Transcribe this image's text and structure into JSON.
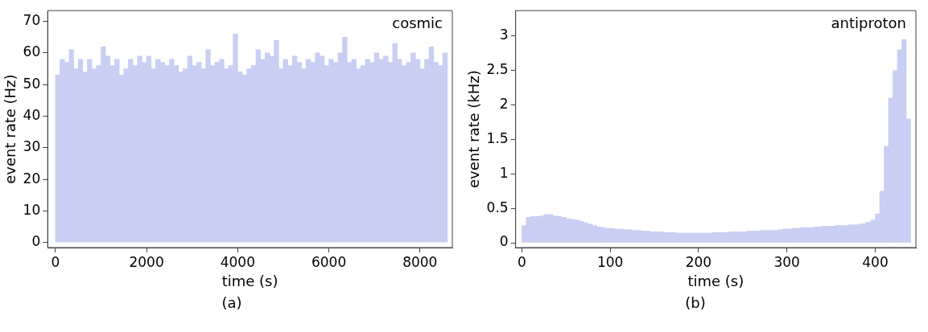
{
  "chart_data": [
    {
      "type": "histogram",
      "xlabel": "time (s)",
      "ylabel": "event rate (Hz)",
      "color": "#c8cff3",
      "grid": false,
      "legend": false,
      "annotations": [
        "cosmic",
        "(a)"
      ],
      "xlim": [
        -170,
        8710
      ],
      "xticks": [
        0,
        2000,
        4000,
        6000,
        8000
      ],
      "ylim": [
        -1.6,
        73.4
      ],
      "yticks": [
        0,
        10,
        20,
        30,
        40,
        50,
        60,
        70
      ],
      "bins": [
        0,
        100,
        200,
        300,
        400,
        500,
        600,
        700,
        800,
        900,
        1000,
        1100,
        1200,
        1300,
        1400,
        1500,
        1600,
        1700,
        1800,
        1900,
        2000,
        2100,
        2200,
        2300,
        2400,
        2500,
        2600,
        2700,
        2800,
        2900,
        3000,
        3100,
        3200,
        3300,
        3400,
        3500,
        3600,
        3700,
        3800,
        3900,
        4000,
        4100,
        4200,
        4300,
        4400,
        4500,
        4600,
        4700,
        4800,
        4900,
        5000,
        5100,
        5200,
        5300,
        5400,
        5500,
        5600,
        5700,
        5800,
        5900,
        6000,
        6100,
        6200,
        6300,
        6400,
        6500,
        6600,
        6700,
        6800,
        6900,
        7000,
        7100,
        7200,
        7300,
        7400,
        7500,
        7600,
        7700,
        7800,
        7900,
        8000,
        8100,
        8200,
        8300,
        8400,
        8500,
        8600
      ],
      "values": [
        53,
        58,
        57,
        61,
        55,
        58,
        54,
        58,
        55,
        56,
        62,
        59,
        56,
        58,
        53,
        55,
        58,
        56,
        59,
        57,
        59,
        55,
        58,
        57,
        56,
        58,
        56,
        54,
        55,
        59,
        56,
        57,
        55,
        61,
        56,
        57,
        58,
        55,
        56,
        66,
        54,
        53,
        55,
        56,
        61,
        58,
        60,
        59,
        64,
        55,
        58,
        56,
        59,
        57,
        55,
        58,
        57,
        60,
        59,
        56,
        58,
        57,
        60,
        65,
        57,
        58,
        55,
        56,
        58,
        57,
        60,
        58,
        59,
        57,
        63,
        58,
        56,
        57,
        60,
        58,
        55,
        58,
        62,
        57,
        56,
        60
      ]
    },
    {
      "type": "histogram",
      "xlabel": "time (s)",
      "ylabel": "event rate (kHz)",
      "color": "#c8cff3",
      "grid": false,
      "legend": false,
      "annotations": [
        "antiproton",
        "(b)"
      ],
      "xlim": [
        -7,
        446
      ],
      "xticks": [
        0,
        100,
        200,
        300,
        400
      ],
      "ylim": [
        -0.07,
        3.37
      ],
      "yticks": [
        0,
        0.5,
        1,
        1.5,
        2,
        2.5,
        3
      ],
      "bins": [
        0,
        5,
        10,
        15,
        20,
        25,
        30,
        35,
        40,
        45,
        50,
        55,
        60,
        65,
        70,
        75,
        80,
        85,
        90,
        95,
        100,
        105,
        110,
        115,
        120,
        125,
        130,
        135,
        140,
        145,
        150,
        155,
        160,
        165,
        170,
        175,
        180,
        185,
        190,
        195,
        200,
        205,
        210,
        215,
        220,
        225,
        230,
        235,
        240,
        245,
        250,
        255,
        260,
        265,
        270,
        275,
        280,
        285,
        290,
        295,
        300,
        305,
        310,
        315,
        320,
        325,
        330,
        335,
        340,
        345,
        350,
        355,
        360,
        365,
        370,
        375,
        380,
        385,
        390,
        395,
        400,
        405,
        410,
        415,
        420,
        425,
        430,
        435,
        440
      ],
      "values": [
        0.25,
        0.37,
        0.38,
        0.38,
        0.39,
        0.41,
        0.41,
        0.39,
        0.38,
        0.37,
        0.35,
        0.34,
        0.33,
        0.31,
        0.29,
        0.27,
        0.25,
        0.23,
        0.22,
        0.21,
        0.21,
        0.2,
        0.2,
        0.19,
        0.19,
        0.18,
        0.18,
        0.17,
        0.17,
        0.16,
        0.16,
        0.16,
        0.15,
        0.15,
        0.15,
        0.14,
        0.14,
        0.14,
        0.14,
        0.14,
        0.14,
        0.14,
        0.14,
        0.15,
        0.15,
        0.15,
        0.15,
        0.16,
        0.16,
        0.16,
        0.16,
        0.17,
        0.17,
        0.17,
        0.18,
        0.18,
        0.18,
        0.18,
        0.19,
        0.2,
        0.2,
        0.21,
        0.21,
        0.22,
        0.22,
        0.22,
        0.23,
        0.23,
        0.24,
        0.24,
        0.24,
        0.25,
        0.25,
        0.25,
        0.26,
        0.26,
        0.27,
        0.28,
        0.3,
        0.33,
        0.42,
        0.75,
        1.4,
        2.1,
        2.5,
        2.8,
        2.95,
        1.8
      ]
    }
  ]
}
